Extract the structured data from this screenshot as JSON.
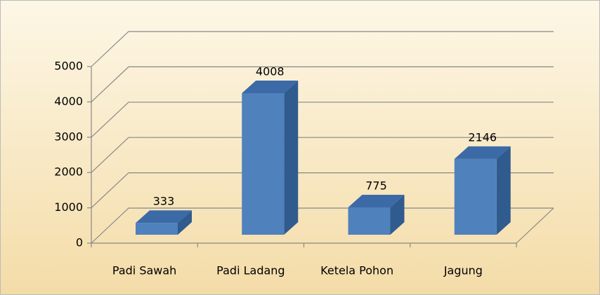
{
  "chart_data": {
    "type": "bar3d",
    "categories": [
      "Padi Sawah",
      "Padi Ladang",
      "Ketela Pohon",
      "Jagung"
    ],
    "values": [
      333,
      4008,
      775,
      2146
    ],
    "color": "#4f81bd",
    "ylim": [
      0,
      5000
    ],
    "yticks": [
      0,
      1000,
      2000,
      3000,
      4000,
      5000
    ],
    "grid": true
  }
}
